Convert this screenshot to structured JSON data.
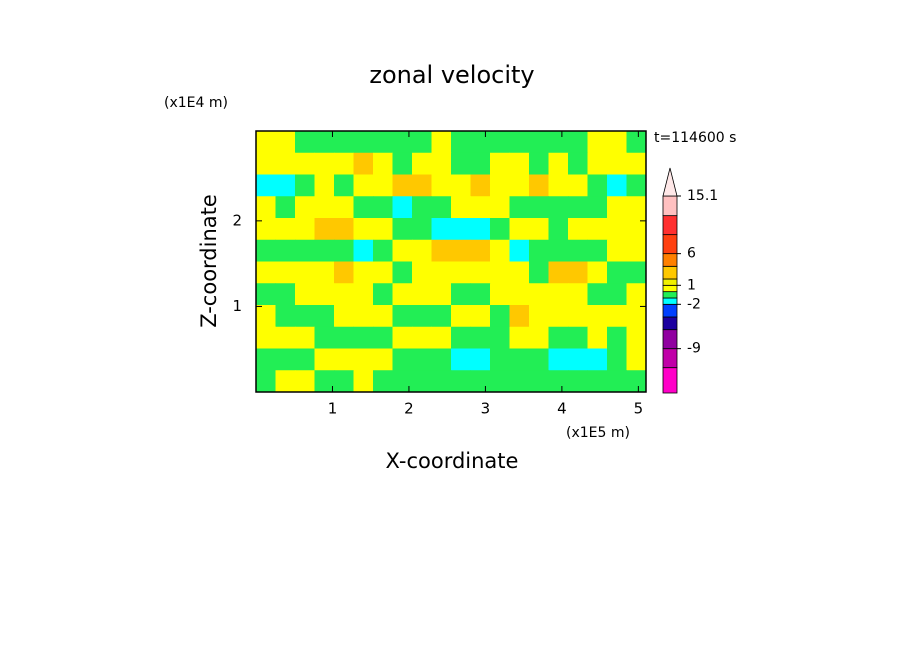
{
  "chart_data": {
    "type": "contour",
    "title": "zonal velocity",
    "x_label": "X-coordinate",
    "y_label": "Z-coordinate",
    "x_unit": "(x1E5 m)",
    "y_unit": "(x1E4 m)",
    "time_label": "t=114600 s",
    "xlim": [
      0,
      5.1
    ],
    "ylim": [
      0,
      3.05
    ],
    "xticks": [
      1,
      2,
      3,
      4,
      5
    ],
    "yticks": [
      1,
      2
    ],
    "z": [
      [
        0.5,
        0.5,
        -0.5,
        -0.5,
        -0.5,
        -0.5,
        -0.5,
        -0.5,
        -0.5,
        0.5,
        -0.5,
        -0.5,
        -0.5,
        -0.5,
        -0.5,
        -0.5,
        -0.5,
        0.5,
        0.5,
        -0.5
      ],
      [
        0.5,
        0.5,
        0.5,
        0.5,
        0.5,
        2.5,
        0.5,
        -0.5,
        0.5,
        0.5,
        -0.5,
        -0.5,
        0.5,
        0.5,
        -0.5,
        0.5,
        -0.5,
        0.5,
        0.5,
        0.5
      ],
      [
        -1.5,
        -1.5,
        -0.5,
        0.5,
        -0.5,
        0.5,
        0.5,
        2.5,
        2.5,
        0.5,
        0.5,
        2.5,
        0.5,
        0.5,
        2.5,
        0.5,
        0.5,
        -0.5,
        -1.5,
        -0.5
      ],
      [
        0.5,
        -0.5,
        0.5,
        0.5,
        0.5,
        -0.5,
        -0.5,
        -1.5,
        -0.5,
        -0.5,
        0.5,
        0.5,
        0.5,
        -0.5,
        -0.5,
        -0.5,
        -0.5,
        -0.5,
        0.5,
        0.5
      ],
      [
        0.5,
        0.5,
        0.5,
        2.5,
        2.5,
        0.5,
        0.5,
        -0.5,
        -0.5,
        -1.5,
        -1.5,
        -1.5,
        -0.5,
        0.5,
        0.5,
        -0.5,
        0.5,
        0.5,
        0.5,
        0.5
      ],
      [
        -0.5,
        -0.5,
        -0.5,
        -0.5,
        -0.5,
        -1.5,
        -0.5,
        0.5,
        0.5,
        2.5,
        2.5,
        2.5,
        0.5,
        -1.5,
        -0.5,
        -0.5,
        -0.5,
        -0.5,
        0.5,
        0.5
      ],
      [
        0.5,
        0.5,
        0.5,
        0.5,
        2.5,
        0.5,
        0.5,
        -0.5,
        0.5,
        0.5,
        0.5,
        0.5,
        0.5,
        0.5,
        -0.5,
        2.5,
        2.5,
        0.5,
        -0.5,
        -0.5
      ],
      [
        -0.5,
        -0.5,
        0.5,
        0.5,
        0.5,
        0.5,
        -0.5,
        0.5,
        0.5,
        0.5,
        -0.5,
        -0.5,
        0.5,
        0.5,
        0.5,
        0.5,
        0.5,
        -0.5,
        -0.5,
        0.5
      ],
      [
        0.5,
        -0.5,
        -0.5,
        -0.5,
        0.5,
        0.5,
        0.5,
        -0.5,
        -0.5,
        -0.5,
        0.5,
        0.5,
        -0.5,
        2.5,
        0.5,
        0.5,
        0.5,
        0.5,
        0.5,
        0.5
      ],
      [
        0.5,
        0.5,
        0.5,
        -0.5,
        -0.5,
        -0.5,
        -0.5,
        0.5,
        0.5,
        0.5,
        -0.5,
        -0.5,
        -0.5,
        0.5,
        0.5,
        -0.5,
        -0.5,
        0.5,
        -0.5,
        0.5
      ],
      [
        -0.5,
        -0.5,
        -0.5,
        0.5,
        0.5,
        0.5,
        0.5,
        -0.5,
        -0.5,
        -0.5,
        -1.5,
        -1.5,
        -0.5,
        -0.5,
        -0.5,
        -1.5,
        -1.5,
        -1.5,
        -0.5,
        0.5
      ],
      [
        -0.5,
        0.5,
        0.5,
        -0.5,
        -0.5,
        0.5,
        -0.5,
        -0.5,
        -0.5,
        -0.5,
        -0.5,
        -0.5,
        -0.5,
        -0.5,
        -0.5,
        -0.5,
        -0.5,
        -0.5,
        -0.5,
        -0.5
      ]
    ],
    "colorbar": {
      "clim": [
        -16,
        15.1
      ],
      "levels": [
        -16,
        -12,
        -9,
        -6,
        -4,
        -2,
        -1,
        0,
        1,
        2,
        4,
        6,
        9,
        12,
        15.1
      ],
      "colors": [
        "#ff00c8",
        "#c000a8",
        "#9000a0",
        "#1c00a0",
        "#0040ff",
        "#00ffff",
        "#22ee55",
        "#ffff00",
        "#f0f000",
        "#ffc800",
        "#ff8000",
        "#ff4010",
        "#ff3030",
        "#ffc0c0"
      ],
      "over_color": "#ffe8e8",
      "ticks": [
        15.1,
        6,
        1,
        -2,
        -9
      ]
    }
  }
}
